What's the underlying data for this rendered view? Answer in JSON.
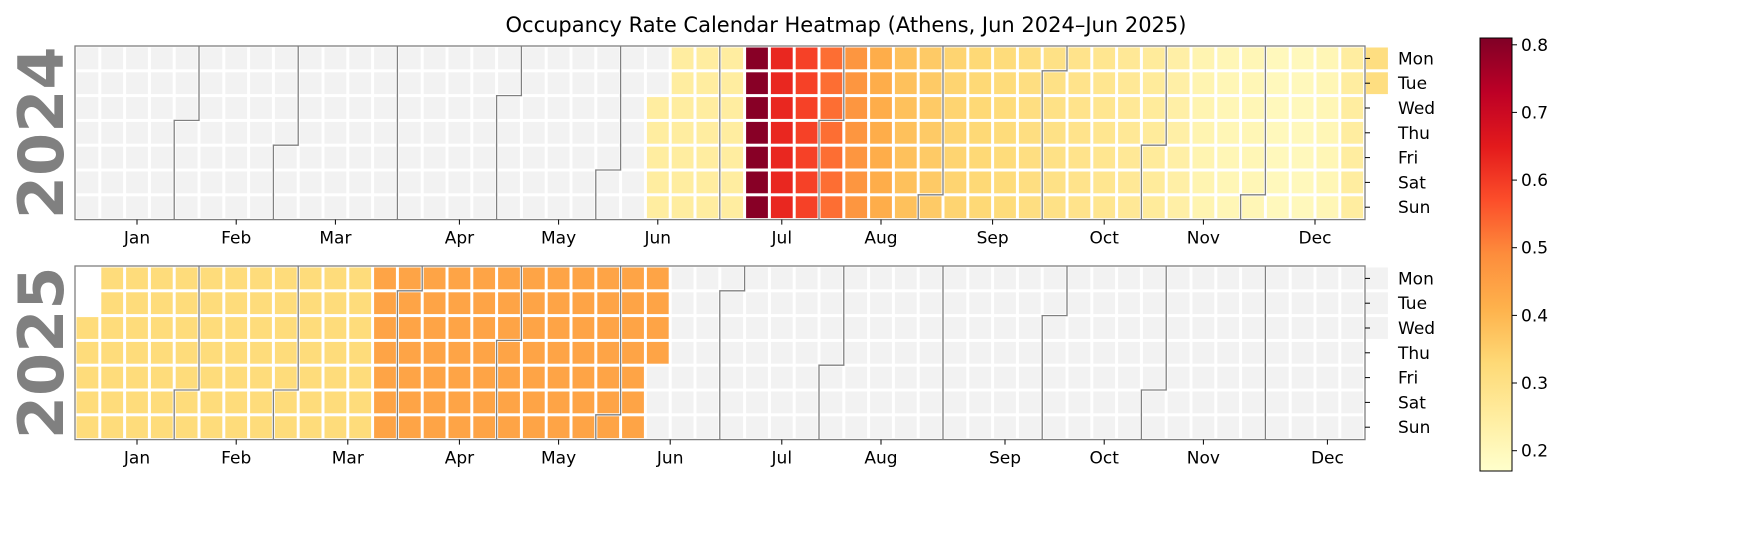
{
  "chart_data": {
    "type": "heatmap",
    "title": "Occupancy Rate Calendar Heatmap (Athens, Jun 2024–Jun 2025)",
    "value_range": [
      0.17,
      0.81
    ],
    "colorbar_ticks": [
      0.2,
      0.3,
      0.4,
      0.5,
      0.6,
      0.7,
      0.8
    ],
    "colorbar_tick_labels": [
      "0.2",
      "0.3",
      "0.4",
      "0.5",
      "0.6",
      "0.7",
      "0.8"
    ],
    "colormap": "YlOrRd",
    "colormap_stops": [
      "#ffffcc",
      "#ffeda0",
      "#fed976",
      "#feb24c",
      "#fd8d3c",
      "#fc4e2a",
      "#e31a1c",
      "#bd0026",
      "#800026"
    ],
    "empty_cell_color": "#f2f2f2",
    "weekday_labels": [
      "Mon",
      "Tue",
      "Wed",
      "Thu",
      "Fri",
      "Sat",
      "Sun"
    ],
    "month_labels": [
      "Jan",
      "Feb",
      "Mar",
      "Apr",
      "May",
      "Jun",
      "Jul",
      "Aug",
      "Sep",
      "Oct",
      "Nov",
      "Dec"
    ],
    "data_start": "2024-06-12",
    "data_end": "2025-06-12",
    "years": [
      {
        "year": "2024",
        "weekly_values": [
          [
            27,
            0.8
          ],
          [
            28,
            0.63
          ],
          [
            29,
            0.59
          ],
          [
            30,
            0.53
          ],
          [
            31,
            0.47
          ],
          [
            32,
            0.42
          ],
          [
            33,
            0.38
          ],
          [
            34,
            0.36
          ],
          [
            35,
            0.34
          ],
          [
            36,
            0.33
          ],
          [
            37,
            0.32
          ],
          [
            38,
            0.31
          ],
          [
            39,
            0.3
          ],
          [
            40,
            0.29
          ],
          [
            41,
            0.28
          ],
          [
            42,
            0.27
          ],
          [
            43,
            0.26
          ],
          [
            44,
            0.24
          ],
          [
            45,
            0.22
          ],
          [
            46,
            0.21
          ],
          [
            47,
            0.21
          ],
          [
            48,
            0.2
          ],
          [
            49,
            0.2
          ],
          [
            50,
            0.21
          ],
          [
            51,
            0.25
          ],
          [
            52,
            0.31
          ]
        ]
      },
      {
        "year": "2025",
        "weekly_values": [
          [
            0,
            0.32
          ],
          [
            1,
            0.32
          ],
          [
            2,
            0.32
          ],
          [
            3,
            0.32
          ],
          [
            4,
            0.32
          ],
          [
            5,
            0.32
          ],
          [
            6,
            0.32
          ],
          [
            7,
            0.32
          ],
          [
            8,
            0.32
          ],
          [
            9,
            0.32
          ],
          [
            10,
            0.32
          ],
          [
            11,
            0.32
          ],
          [
            12,
            0.44
          ],
          [
            13,
            0.44
          ],
          [
            14,
            0.44
          ],
          [
            15,
            0.44
          ],
          [
            16,
            0.44
          ],
          [
            17,
            0.44
          ],
          [
            18,
            0.44
          ],
          [
            19,
            0.44
          ],
          [
            20,
            0.44
          ],
          [
            21,
            0.44
          ],
          [
            22,
            0.44
          ],
          [
            23,
            0.44
          ],
          [
            24,
            0.44
          ],
          [
            25,
            0.48
          ]
        ]
      }
    ]
  }
}
